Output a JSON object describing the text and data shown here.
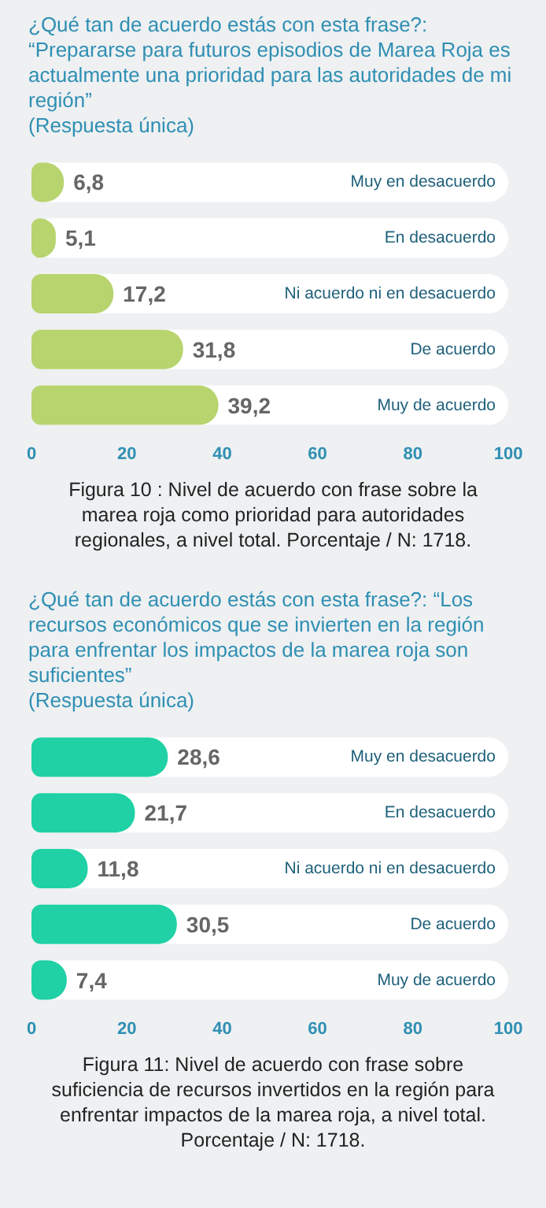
{
  "chart_data": [
    {
      "type": "bar",
      "orientation": "horizontal",
      "title": "¿Qué tan de acuerdo estás con esta frase?: “Prepararse para futuros episodios de Marea Roja es actualmente una prioridad para las autoridades de mi región”",
      "subtitle": "(Respuesta única)",
      "categories": [
        "Muy en desacuerdo",
        "En desacuerdo",
        "Ni acuerdo ni en desacuerdo",
        "De acuerdo",
        "Muy de acuerdo"
      ],
      "values": [
        6.8,
        5.1,
        17.2,
        31.8,
        39.2
      ],
      "value_labels": [
        "6,8",
        "5,1",
        "17,2",
        "31,8",
        "39,2"
      ],
      "color": "#b7d46e",
      "xlim": [
        0,
        100
      ],
      "xticks": [
        0,
        20,
        40,
        60,
        80,
        100
      ],
      "grid": false,
      "annotations": [
        "Figura 10 : Nivel de acuerdo con frase sobre la marea roja como prioridad para autoridades regionales, a nivel total. Porcentaje / N: 1718."
      ]
    },
    {
      "type": "bar",
      "orientation": "horizontal",
      "title": "¿Qué tan de acuerdo estás con esta frase?: “Los recursos económicos que se invierten en la región para enfrentar los impactos de la marea roja son suficientes”",
      "subtitle": "(Respuesta única)",
      "categories": [
        "Muy en desacuerdo",
        "En desacuerdo",
        "Ni acuerdo ni en desacuerdo",
        "De acuerdo",
        "Muy de acuerdo"
      ],
      "values": [
        28.6,
        21.7,
        11.8,
        30.5,
        7.4
      ],
      "value_labels": [
        "28,6",
        "21,7",
        "11,8",
        "30,5",
        "7,4"
      ],
      "color": "#1fd1a5",
      "xlim": [
        0,
        100
      ],
      "xticks": [
        0,
        20,
        40,
        60,
        80,
        100
      ],
      "grid": false,
      "annotations": [
        "Figura 11: Nivel de acuerdo con frase sobre suficiencia de recursos invertidos en la región para enfrentar impactos de la marea roja, a nivel total. Porcentaje / N: 1718."
      ]
    }
  ]
}
